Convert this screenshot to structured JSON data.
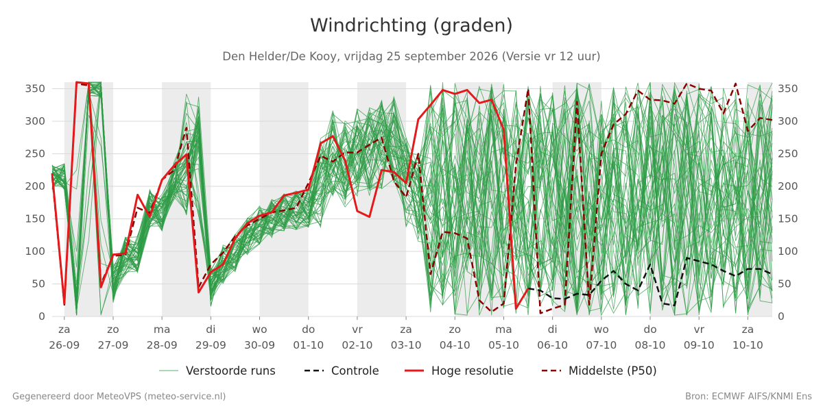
{
  "title": "Windrichting (graden)",
  "subtitle": "Den Helder/De Kooy, vrijdag 25 september 2026 (Versie vr 12 uur)",
  "footer": {
    "left": "Gegenereerd door MeteoVPS (meteo-service.nl)",
    "right": "Bron: ECMWF AIFS/KNMI Ens"
  },
  "colors": {
    "ensemble": "#2e9b45",
    "control": "#111111",
    "high_res": "#e31a1c",
    "median": "#8b0000",
    "night_band": "#ececec",
    "grid": "#d9d9d9"
  },
  "chart_data": {
    "type": "line",
    "ylim": [
      0,
      360
    ],
    "yticks": [
      0,
      50,
      100,
      150,
      200,
      250,
      300,
      350
    ],
    "y_axis_right": true,
    "x_unit": "days since 26-09 00:00",
    "xlim": [
      -0.25,
      14.5
    ],
    "date_ticks": [
      {
        "x": 0,
        "day": "za",
        "date": "26-09"
      },
      {
        "x": 1,
        "day": "zo",
        "date": "27-09"
      },
      {
        "x": 2,
        "day": "ma",
        "date": "28-09"
      },
      {
        "x": 3,
        "day": "di",
        "date": "29-09"
      },
      {
        "x": 4,
        "day": "wo",
        "date": "30-09"
      },
      {
        "x": 5,
        "day": "do",
        "date": "01-10"
      },
      {
        "x": 6,
        "day": "vr",
        "date": "02-10"
      },
      {
        "x": 7,
        "day": "za",
        "date": "03-10"
      },
      {
        "x": 8,
        "day": "zo",
        "date": "04-10"
      },
      {
        "x": 9,
        "day": "ma",
        "date": "05-10"
      },
      {
        "x": 10,
        "day": "di",
        "date": "06-10"
      },
      {
        "x": 11,
        "day": "wo",
        "date": "07-10"
      },
      {
        "x": 12,
        "day": "do",
        "date": "08-10"
      },
      {
        "x": 13,
        "day": "vr",
        "date": "09-10"
      },
      {
        "x": 14,
        "day": "za",
        "date": "10-10"
      }
    ],
    "night_bands": [
      [
        0,
        1
      ],
      [
        2,
        3
      ],
      [
        4,
        5
      ],
      [
        6,
        7
      ],
      [
        8,
        9
      ],
      [
        10,
        11
      ],
      [
        12,
        13
      ],
      [
        14,
        14.5
      ]
    ],
    "legend": [
      {
        "key": "ensemble",
        "label": "Verstoorde runs"
      },
      {
        "key": "control",
        "label": "Controle"
      },
      {
        "key": "high_res",
        "label": "Hoge resolutie"
      },
      {
        "key": "median",
        "label": "Middelste (P50)"
      }
    ],
    "series": [
      {
        "name": "Hoge resolutie",
        "key": "high_res",
        "x": [
          -0.25,
          0,
          0.25,
          0.5,
          0.75,
          1,
          1.25,
          1.5,
          1.75,
          2,
          2.25,
          2.5,
          2.75,
          3,
          3.25,
          3.5,
          3.75,
          4,
          4.25,
          4.5,
          4.75,
          5,
          5.25,
          5.5,
          5.75,
          6,
          6.25,
          6.5,
          6.75,
          7,
          7.25,
          7.5,
          7.75,
          8,
          8.25,
          8.5,
          8.75,
          9,
          9.25,
          9.5
        ],
        "y": [
          220,
          20,
          360,
          358,
          45,
          95,
          97,
          187,
          153,
          210,
          232,
          249,
          37,
          68,
          80,
          120,
          143,
          155,
          160,
          186,
          190,
          195,
          266,
          277,
          240,
          162,
          153,
          225,
          222,
          205,
          303,
          325,
          348,
          342,
          348,
          328,
          333,
          287,
          12,
          43
        ]
      },
      {
        "name": "Middelste (P50)",
        "key": "median",
        "x": [
          -0.25,
          0,
          0.25,
          0.5,
          0.75,
          1,
          1.25,
          1.5,
          1.75,
          2,
          2.25,
          2.5,
          2.75,
          3,
          3.25,
          3.5,
          3.75,
          4,
          4.25,
          4.5,
          4.75,
          5,
          5.25,
          5.5,
          5.75,
          6,
          6.25,
          6.5,
          6.75,
          7,
          7.25,
          7.5,
          7.75,
          8,
          8.25,
          8.5,
          8.75,
          9,
          9.25,
          9.5,
          9.75,
          10,
          10.25,
          10.5,
          10.75,
          11,
          11.25,
          11.5,
          11.75,
          12,
          12.25,
          12.5,
          12.75,
          13,
          13.25,
          13.5,
          13.75,
          14,
          14.25,
          14.5
        ],
        "y": [
          215,
          18,
          358,
          355,
          50,
          93,
          95,
          167,
          159,
          210,
          225,
          290,
          45,
          80,
          98,
          123,
          140,
          150,
          160,
          163,
          167,
          205,
          247,
          238,
          252,
          252,
          264,
          275,
          208,
          183,
          250,
          65,
          130,
          128,
          120,
          25,
          7,
          20,
          233,
          350,
          5,
          12,
          18,
          330,
          18,
          250,
          295,
          311,
          347,
          333,
          332,
          327,
          358,
          350,
          347,
          312,
          358,
          285,
          305,
          302
        ]
      },
      {
        "name": "Controle",
        "key": "control",
        "x": [
          9.5,
          9.75,
          10,
          10.25,
          10.5,
          10.75,
          11,
          11.25,
          11.5,
          11.75,
          12,
          12.25,
          12.5,
          12.75,
          13,
          13.25,
          13.5,
          13.75,
          14,
          14.25,
          14.5
        ],
        "y": [
          43,
          40,
          28,
          27,
          35,
          33,
          55,
          70,
          50,
          40,
          80,
          20,
          17,
          90,
          85,
          80,
          70,
          62,
          73,
          73,
          65
        ]
      }
    ]
  }
}
